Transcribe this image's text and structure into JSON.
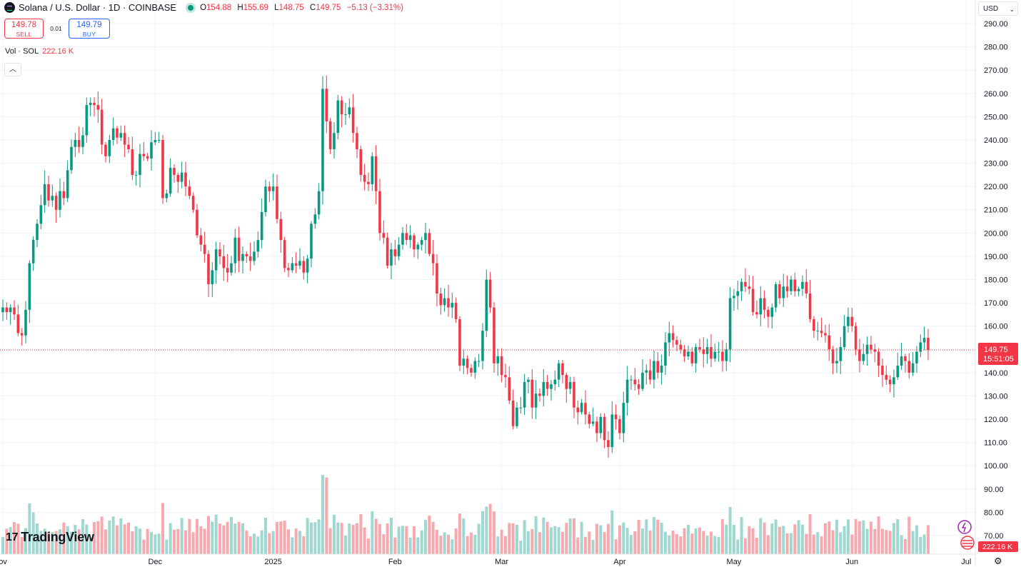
{
  "header": {
    "symbol": "Solana / U.S. Dollar · 1D · COINBASE",
    "open_label": "O",
    "open": "154.88",
    "high_label": "H",
    "high": "155.69",
    "low_label": "L",
    "low": "148.75",
    "close_label": "C",
    "close": "149.75",
    "change": "−5.13 (−3.31%)"
  },
  "trade": {
    "sell_price": "149.78",
    "sell_label": "SELL",
    "spread": "0.01",
    "buy_price": "149.79",
    "buy_label": "BUY"
  },
  "volume_legend": {
    "label": "Vol · SOL",
    "value": "222.16 K"
  },
  "currency": {
    "value": "USD"
  },
  "branding": {
    "name": "TradingView"
  },
  "price_tag": {
    "price": "149.75",
    "countdown": "15:51:05"
  },
  "volume_tag": {
    "value": "222.16 K"
  },
  "colors": {
    "up": "#089981",
    "down": "#f23645",
    "up_vol": "#9ed8d0",
    "down_vol": "#f7a9ae",
    "grid": "#f0f3fa"
  },
  "chart_data": {
    "type": "candlestick",
    "title": "Solana / U.S. Dollar · 1D · COINBASE",
    "ylim": [
      62,
      298
    ],
    "y_ticks": [
      "290.00",
      "280.00",
      "270.00",
      "260.00",
      "250.00",
      "240.00",
      "230.00",
      "220.00",
      "210.00",
      "200.00",
      "190.00",
      "180.00",
      "170.00",
      "160.00",
      "150.00",
      "140.00",
      "130.00",
      "120.00",
      "110.00",
      "100.00",
      "90.00",
      "80.00",
      "70.00"
    ],
    "x_labels": [
      "ov",
      "Dec",
      "2025",
      "Feb",
      "Mar",
      "Apr",
      "May",
      "Jun",
      "Jul"
    ],
    "x_label_index": [
      0,
      40,
      71,
      103,
      131,
      162,
      192,
      223,
      253
    ],
    "last_price": 149.75,
    "closes": [
      168,
      166,
      168,
      165,
      157,
      156,
      167,
      187,
      197,
      204,
      212,
      221,
      214,
      216,
      210,
      218,
      215,
      227,
      237,
      240,
      237,
      242,
      255,
      256,
      255,
      253,
      238,
      233,
      240,
      245,
      241,
      243,
      238,
      236,
      225,
      225,
      234,
      233,
      232,
      239,
      240,
      240,
      215,
      217,
      228,
      225,
      222,
      226,
      220,
      216,
      210,
      199,
      195,
      191,
      178,
      184,
      193,
      190,
      185,
      183,
      187,
      198,
      188,
      191,
      190,
      188,
      192,
      197,
      209,
      220,
      218,
      220,
      206,
      197,
      185,
      184,
      187,
      186,
      188,
      183,
      189,
      204,
      208,
      218,
      262,
      248,
      236,
      243,
      257,
      251,
      251,
      254,
      243,
      236,
      225,
      222,
      221,
      233,
      218,
      200,
      198,
      186,
      193,
      190,
      195,
      200,
      197,
      199,
      193,
      195,
      197,
      200,
      191,
      187,
      174,
      169,
      172,
      168,
      170,
      163,
      143,
      146,
      142,
      140,
      145,
      145,
      158,
      180,
      168,
      144,
      147,
      139,
      138,
      128,
      117,
      125,
      125,
      136,
      137,
      125,
      131,
      130,
      136,
      133,
      135,
      137,
      144,
      139,
      133,
      136,
      125,
      123,
      127,
      122,
      118,
      119,
      114,
      121,
      111,
      108,
      122,
      120,
      114,
      127,
      137,
      137,
      135,
      133,
      140,
      141,
      137,
      145,
      140,
      143,
      153,
      157,
      154,
      152,
      150,
      147,
      149,
      144,
      151,
      150,
      148,
      151,
      146,
      149,
      149,
      145,
      150,
      172,
      173,
      175,
      179,
      177,
      176,
      166,
      165,
      172,
      167,
      164,
      168,
      178,
      172,
      177,
      175,
      180,
      175,
      176,
      179,
      174,
      163,
      158,
      158,
      157,
      156,
      150,
      144,
      145,
      151,
      160,
      164,
      160,
      150,
      145,
      148,
      152,
      150,
      149,
      143,
      139,
      137,
      135,
      138,
      143,
      147,
      145,
      140,
      144,
      149,
      153,
      155,
      149.75
    ]
  }
}
